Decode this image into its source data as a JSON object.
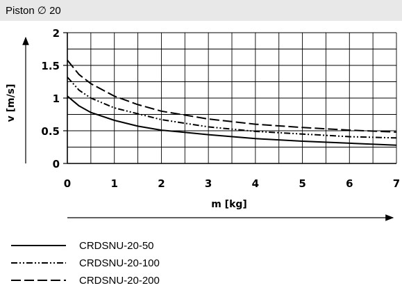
{
  "header": {
    "title": "Piston ∅ 20"
  },
  "chart_data": {
    "type": "line",
    "xlabel": "m [kg]",
    "ylabel": "v [m/s]",
    "xlim": [
      0,
      7
    ],
    "ylim": [
      0,
      2
    ],
    "x_ticks": [
      "0",
      "1",
      "2",
      "3",
      "4",
      "5",
      "6",
      "7"
    ],
    "y_ticks": [
      "0",
      "0.5",
      "1",
      "1.5",
      "2"
    ],
    "grid": true,
    "series": [
      {
        "name": "CRDSNU-20-50",
        "style": "solid",
        "x": [
          0,
          0.25,
          0.5,
          1,
          1.5,
          2,
          3,
          4,
          5,
          6,
          7
        ],
        "y": [
          1.03,
          0.88,
          0.78,
          0.66,
          0.57,
          0.51,
          0.44,
          0.38,
          0.34,
          0.31,
          0.28
        ]
      },
      {
        "name": "CRDSNU-20-100",
        "style": "dash-dot-dot",
        "x": [
          0,
          0.25,
          0.5,
          1,
          1.5,
          2,
          3,
          4,
          5,
          6,
          7
        ],
        "y": [
          1.32,
          1.12,
          1.0,
          0.85,
          0.76,
          0.67,
          0.56,
          0.49,
          0.45,
          0.41,
          0.39
        ]
      },
      {
        "name": "CRDSNU-20-200",
        "style": "dashed",
        "x": [
          0,
          0.25,
          0.5,
          1,
          1.5,
          2,
          3,
          4,
          5,
          6,
          7
        ],
        "y": [
          1.58,
          1.36,
          1.22,
          1.03,
          0.9,
          0.8,
          0.68,
          0.6,
          0.55,
          0.51,
          0.48
        ]
      }
    ]
  }
}
